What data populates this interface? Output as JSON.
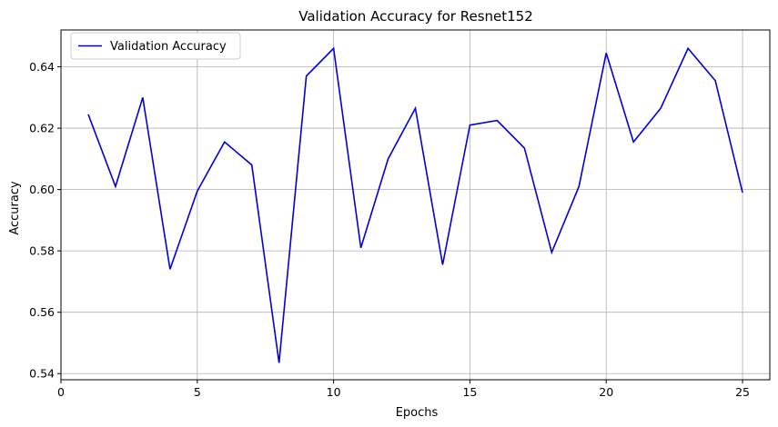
{
  "chart_data": {
    "type": "line",
    "title": "Validation Accuracy for Resnet152",
    "xlabel": "Epochs",
    "ylabel": "Accuracy",
    "xlim": [
      0,
      26
    ],
    "ylim": [
      0.538,
      0.652
    ],
    "xticks": [
      0,
      5,
      10,
      15,
      20,
      25
    ],
    "yticks": [
      0.54,
      0.56,
      0.58,
      0.6,
      0.62,
      0.64
    ],
    "grid": true,
    "legend": "top-left",
    "series": [
      {
        "name": "Validation Accuracy",
        "color": "#0000dd",
        "x": [
          1,
          2,
          3,
          4,
          5,
          6,
          7,
          8,
          9,
          10,
          11,
          12,
          13,
          14,
          15,
          16,
          17,
          18,
          19,
          20,
          21,
          22,
          23,
          24,
          25
        ],
        "y": [
          0.6245,
          0.601,
          0.63,
          0.574,
          0.5995,
          0.6155,
          0.608,
          0.5435,
          0.637,
          0.646,
          0.581,
          0.61,
          0.6265,
          0.5755,
          0.621,
          0.6225,
          0.6135,
          0.5795,
          0.601,
          0.6445,
          0.6155,
          0.6265,
          0.646,
          0.6355,
          0.599
        ]
      }
    ]
  }
}
